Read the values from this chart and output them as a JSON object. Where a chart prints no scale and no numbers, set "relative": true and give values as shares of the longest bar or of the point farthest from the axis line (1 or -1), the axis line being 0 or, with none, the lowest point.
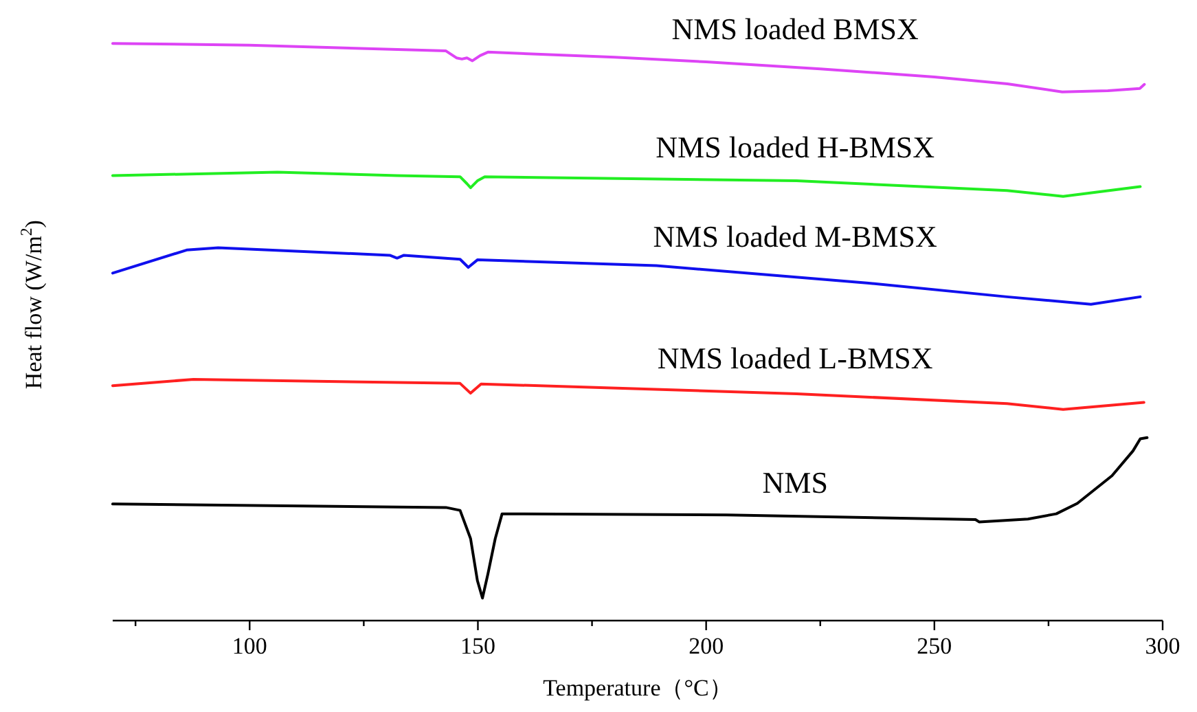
{
  "chart_data": {
    "type": "line",
    "relative": true,
    "xlabel": "Temperature（°C）",
    "ylabel": "Heat flow (W/m$^{2}$)",
    "xlim": [
      70,
      300
    ],
    "xticks": [
      {
        "value": 75,
        "label": null
      },
      100,
      {
        "value": 125,
        "label": null
      },
      150,
      {
        "value": 175,
        "label": null
      },
      200,
      {
        "value": 225,
        "label": null
      },
      250,
      {
        "value": 275,
        "label": null
      },
      300
    ],
    "series": [
      {
        "name": "NMS loaded BMSX",
        "color": "#dd44f5",
        "x": [
          70,
          100,
          143,
          145.3,
          146.5,
          147.6,
          148.8,
          150.5,
          152.2,
          180,
          200,
          225,
          250,
          266,
          278,
          288,
          295,
          296
        ],
        "values": [
          1.0,
          0.997,
          0.987,
          0.975,
          0.973,
          0.975,
          0.97,
          0.979,
          0.985,
          0.976,
          0.968,
          0.956,
          0.942,
          0.93,
          0.916,
          0.918,
          0.922,
          0.929
        ]
      },
      {
        "name": "NMS loaded H-BMSX",
        "color": "#22ee22",
        "x": [
          70,
          106.1,
          132.3,
          146.1,
          147.6,
          148.4,
          149.9,
          151.5,
          219.8,
          265.9,
          278.2,
          295.1
        ],
        "values": [
          0.771,
          0.777,
          0.771,
          0.769,
          0.757,
          0.75,
          0.762,
          0.769,
          0.762,
          0.745,
          0.735,
          0.752
        ]
      },
      {
        "name": "NMS loaded M-BMSX",
        "color": "#1010ee",
        "x": [
          70,
          86.2,
          93.1,
          130.7,
          132.3,
          133.8,
          146.1,
          147.9,
          149.9,
          189.1,
          235.2,
          265.9,
          284.3,
          295.1
        ],
        "values": [
          0.602,
          0.642,
          0.646,
          0.633,
          0.628,
          0.633,
          0.626,
          0.612,
          0.625,
          0.615,
          0.585,
          0.561,
          0.548,
          0.561
        ]
      },
      {
        "name": "NMS loaded L-BMSX",
        "color": "#ff2020",
        "x": [
          70,
          87.7,
          146.1,
          148.4,
          150.7,
          219.8,
          265.9,
          278.2,
          295.9
        ],
        "values": [
          0.407,
          0.418,
          0.411,
          0.394,
          0.41,
          0.393,
          0.376,
          0.366,
          0.378
        ]
      },
      {
        "name": "NMS",
        "color": "#000000",
        "x": [
          70,
          143,
          146.1,
          148.4,
          149.9,
          151,
          152.2,
          153.8,
          155.3,
          204.5,
          259,
          259.8,
          270.5,
          276.7,
          281.3,
          288.9,
          293.5,
          295.1,
          296.6
        ],
        "values": [
          0.202,
          0.196,
          0.191,
          0.142,
          0.069,
          0.039,
          0.081,
          0.142,
          0.185,
          0.183,
          0.175,
          0.171,
          0.176,
          0.185,
          0.203,
          0.251,
          0.294,
          0.315,
          0.317
        ]
      }
    ]
  }
}
